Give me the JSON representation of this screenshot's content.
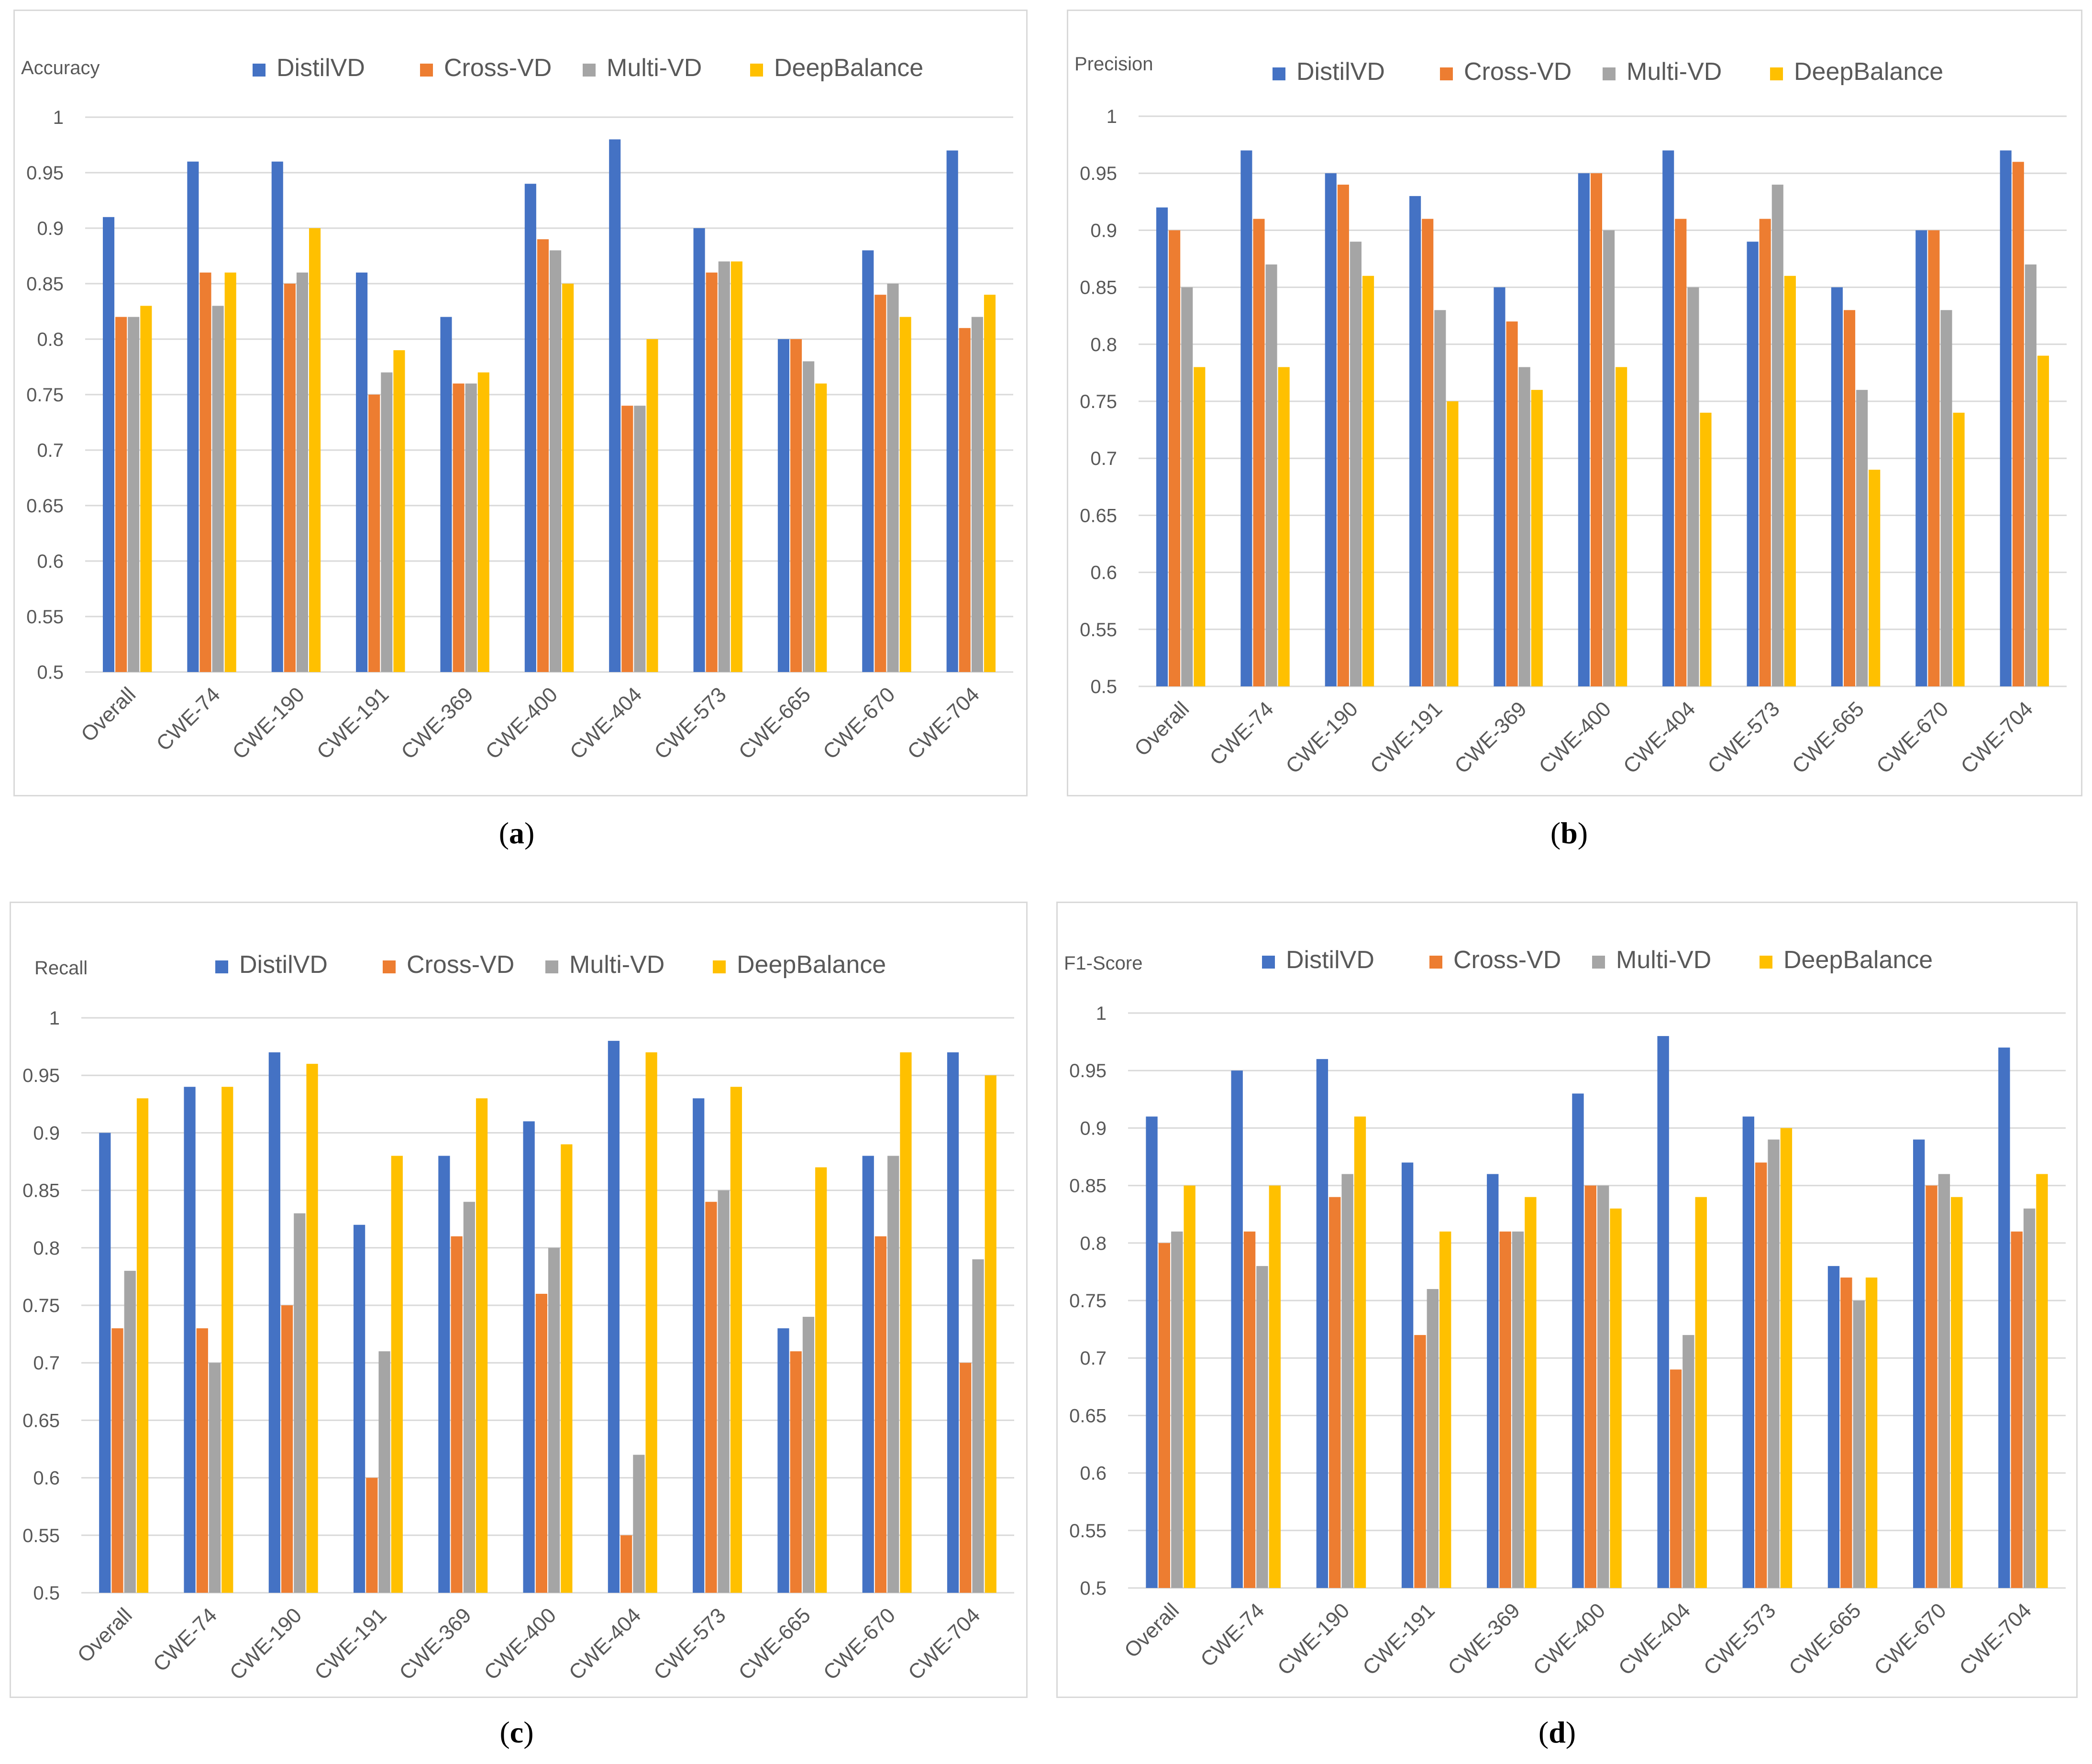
{
  "colors": {
    "DistilVD": "#4472C4",
    "Cross-VD": "#ED7D31",
    "Multi-VD": "#A5A5A5",
    "DeepBalance": "#FFC000",
    "grid": "#d9d9d9",
    "text": "#595959"
  },
  "captions": {
    "a_letter": "a",
    "b_letter": "b",
    "c_letter": "c",
    "d_letter": "d",
    "open": "(",
    "close": ")"
  },
  "chart_data": [
    {
      "id": "a",
      "type": "bar",
      "title": "Accuracy",
      "ylabel": "Accuracy",
      "ylim": [
        0.5,
        1
      ],
      "yticks": [
        "0.5",
        "0.55",
        "0.6",
        "0.65",
        "0.7",
        "0.75",
        "0.8",
        "0.85",
        "0.9",
        "0.95",
        "1"
      ],
      "legend": [
        "DistilVD",
        "Cross-VD",
        "Multi-VD",
        "DeepBalance"
      ],
      "categories": [
        "Overall",
        "CWE-74",
        "CWE-190",
        "CWE-191",
        "CWE-369",
        "CWE-400",
        "CWE-404",
        "CWE-573",
        "CWE-665",
        "CWE-670",
        "CWE-704"
      ],
      "series": [
        {
          "name": "DistilVD",
          "values": [
            0.91,
            0.96,
            0.96,
            0.86,
            0.82,
            0.94,
            0.98,
            0.9,
            0.8,
            0.88,
            0.97
          ]
        },
        {
          "name": "Cross-VD",
          "values": [
            0.82,
            0.86,
            0.85,
            0.75,
            0.76,
            0.89,
            0.74,
            0.86,
            0.8,
            0.84,
            0.81
          ]
        },
        {
          "name": "Multi-VD",
          "values": [
            0.82,
            0.83,
            0.86,
            0.77,
            0.76,
            0.88,
            0.74,
            0.87,
            0.78,
            0.85,
            0.82
          ]
        },
        {
          "name": "DeepBalance",
          "values": [
            0.83,
            0.86,
            0.9,
            0.79,
            0.77,
            0.85,
            0.8,
            0.87,
            0.76,
            0.82,
            0.84
          ]
        }
      ]
    },
    {
      "id": "b",
      "type": "bar",
      "title": "Precision",
      "ylabel": "Precision",
      "ylim": [
        0.5,
        1
      ],
      "yticks": [
        "0.5",
        "0.55",
        "0.6",
        "0.65",
        "0.7",
        "0.75",
        "0.8",
        "0.85",
        "0.9",
        "0.95",
        "1"
      ],
      "legend": [
        "DistilVD",
        "Cross-VD",
        "Multi-VD",
        "DeepBalance"
      ],
      "categories": [
        "Overall",
        "CWE-74",
        "CWE-190",
        "CWE-191",
        "CWE-369",
        "CWE-400",
        "CWE-404",
        "CWE-573",
        "CWE-665",
        "CWE-670",
        "CWE-704"
      ],
      "series": [
        {
          "name": "DistilVD",
          "values": [
            0.92,
            0.97,
            0.95,
            0.93,
            0.85,
            0.95,
            0.97,
            0.89,
            0.85,
            0.9,
            0.97
          ]
        },
        {
          "name": "Cross-VD",
          "values": [
            0.9,
            0.91,
            0.94,
            0.91,
            0.82,
            0.95,
            0.91,
            0.91,
            0.83,
            0.9,
            0.96
          ]
        },
        {
          "name": "Multi-VD",
          "values": [
            0.85,
            0.87,
            0.89,
            0.83,
            0.78,
            0.9,
            0.85,
            0.94,
            0.76,
            0.83,
            0.87
          ]
        },
        {
          "name": "DeepBalance",
          "values": [
            0.78,
            0.78,
            0.86,
            0.75,
            0.76,
            0.78,
            0.74,
            0.86,
            0.69,
            0.74,
            0.79
          ]
        }
      ]
    },
    {
      "id": "c",
      "type": "bar",
      "title": "Recall",
      "ylabel": "Recall",
      "ylim": [
        0.5,
        1
      ],
      "yticks": [
        "0.5",
        "0.55",
        "0.6",
        "0.65",
        "0.7",
        "0.75",
        "0.8",
        "0.85",
        "0.9",
        "0.95",
        "1"
      ],
      "legend": [
        "DistilVD",
        "Cross-VD",
        "Multi-VD",
        "DeepBalance"
      ],
      "categories": [
        "Overall",
        "CWE-74",
        "CWE-190",
        "CWE-191",
        "CWE-369",
        "CWE-400",
        "CWE-404",
        "CWE-573",
        "CWE-665",
        "CWE-670",
        "CWE-704"
      ],
      "series": [
        {
          "name": "DistilVD",
          "values": [
            0.9,
            0.94,
            0.97,
            0.82,
            0.88,
            0.91,
            0.98,
            0.93,
            0.73,
            0.88,
            0.97
          ]
        },
        {
          "name": "Cross-VD",
          "values": [
            0.73,
            0.73,
            0.75,
            0.6,
            0.81,
            0.76,
            0.55,
            0.84,
            0.71,
            0.81,
            0.7
          ]
        },
        {
          "name": "Multi-VD",
          "values": [
            0.78,
            0.7,
            0.83,
            0.71,
            0.84,
            0.8,
            0.62,
            0.85,
            0.74,
            0.88,
            0.79
          ]
        },
        {
          "name": "DeepBalance",
          "values": [
            0.93,
            0.94,
            0.96,
            0.88,
            0.93,
            0.89,
            0.97,
            0.94,
            0.87,
            0.97,
            0.95
          ]
        }
      ]
    },
    {
      "id": "d",
      "type": "bar",
      "title": "F1-Score",
      "ylabel": "F1-Score",
      "ylim": [
        0.5,
        1
      ],
      "yticks": [
        "0.5",
        "0.55",
        "0.6",
        "0.65",
        "0.7",
        "0.75",
        "0.8",
        "0.85",
        "0.9",
        "0.95",
        "1"
      ],
      "legend": [
        "DistilVD",
        "Cross-VD",
        "Multi-VD",
        "DeepBalance"
      ],
      "categories": [
        "Overall",
        "CWE-74",
        "CWE-190",
        "CWE-191",
        "CWE-369",
        "CWE-400",
        "CWE-404",
        "CWE-573",
        "CWE-665",
        "CWE-670",
        "CWE-704"
      ],
      "series": [
        {
          "name": "DistilVD",
          "values": [
            0.91,
            0.95,
            0.96,
            0.87,
            0.86,
            0.93,
            0.98,
            0.91,
            0.78,
            0.89,
            0.97
          ]
        },
        {
          "name": "Cross-VD",
          "values": [
            0.8,
            0.81,
            0.84,
            0.72,
            0.81,
            0.85,
            0.69,
            0.87,
            0.77,
            0.85,
            0.81
          ]
        },
        {
          "name": "Multi-VD",
          "values": [
            0.81,
            0.78,
            0.86,
            0.76,
            0.81,
            0.85,
            0.72,
            0.89,
            0.75,
            0.86,
            0.83
          ]
        },
        {
          "name": "DeepBalance",
          "values": [
            0.85,
            0.85,
            0.91,
            0.81,
            0.84,
            0.83,
            0.84,
            0.9,
            0.77,
            0.84,
            0.86
          ]
        }
      ]
    }
  ]
}
